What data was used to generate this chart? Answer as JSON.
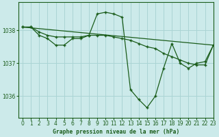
{
  "title": "Graphe pression niveau de la mer (hPa)",
  "background_color": "#cceaea",
  "grid_color": "#aad4d4",
  "line_color": "#1a5c1a",
  "ylim": [
    1035.35,
    1038.85
  ],
  "xlim": [
    -0.5,
    23
  ],
  "yticks": [
    1036,
    1037,
    1038
  ],
  "xticks": [
    0,
    1,
    2,
    3,
    4,
    5,
    6,
    7,
    8,
    9,
    10,
    11,
    12,
    13,
    14,
    15,
    16,
    17,
    18,
    19,
    20,
    21,
    22,
    23
  ],
  "series1_x": [
    0,
    1,
    2,
    3,
    4,
    5,
    6,
    7,
    8,
    9,
    10,
    11,
    12,
    13,
    14,
    15,
    16,
    17,
    18,
    19,
    20,
    21,
    22,
    23
  ],
  "series1_y": [
    1038.1,
    1038.1,
    1037.85,
    1037.75,
    1037.55,
    1037.55,
    1037.75,
    1037.75,
    1037.85,
    1038.5,
    1038.55,
    1038.5,
    1038.4,
    1036.2,
    1035.9,
    1035.65,
    1036.0,
    1036.85,
    1037.6,
    1037.0,
    1036.85,
    1037.0,
    1037.05,
    1037.55
  ],
  "series2_x": [
    0,
    1,
    2,
    3,
    4,
    5,
    6,
    7,
    8,
    9,
    10,
    11,
    12,
    13,
    14,
    15,
    16,
    17,
    18,
    19,
    20,
    21,
    22,
    23
  ],
  "series2_y": [
    1038.1,
    1038.1,
    1037.95,
    1037.85,
    1037.8,
    1037.8,
    1037.8,
    1037.8,
    1037.85,
    1037.85,
    1037.85,
    1037.8,
    1037.75,
    1037.7,
    1037.6,
    1037.5,
    1037.45,
    1037.3,
    1037.2,
    1037.1,
    1037.0,
    1036.95,
    1036.95,
    1037.55
  ],
  "series3_x": [
    0,
    23
  ],
  "series3_y": [
    1038.1,
    1037.55
  ]
}
